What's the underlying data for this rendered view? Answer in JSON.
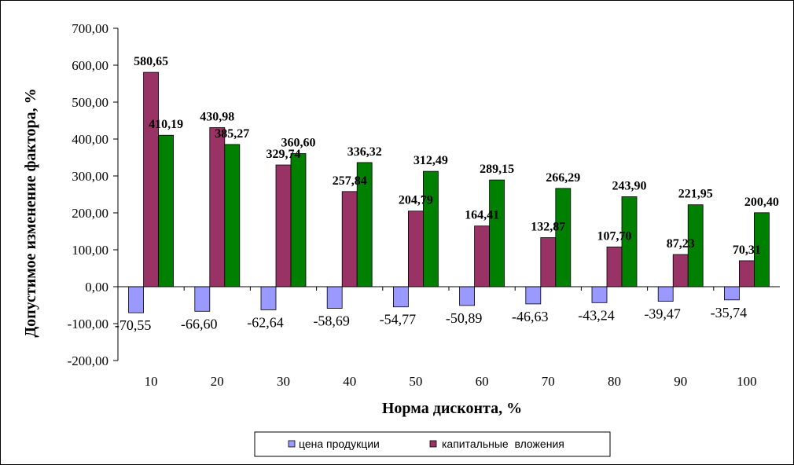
{
  "chart_data": {
    "type": "bar",
    "xlabel": "Норма дисконта, %",
    "ylabel": "Допустимое изменение фактора, %",
    "ylim": [
      -200,
      700
    ],
    "yticks": [
      -200,
      -100,
      0,
      100,
      200,
      300,
      400,
      500,
      600,
      700
    ],
    "ytick_labels": [
      "-200,00",
      "-100,00",
      "0,00",
      "100,00",
      "200,00",
      "300,00",
      "400,00",
      "500,00",
      "600,00",
      "700,00"
    ],
    "categories": [
      "10",
      "20",
      "30",
      "40",
      "50",
      "60",
      "70",
      "80",
      "90",
      "100"
    ],
    "grid": false,
    "legend_position": "bottom",
    "series": [
      {
        "name": "цена продукции",
        "color": "#9999ff",
        "values": [
          -70.55,
          -66.6,
          -62.64,
          -58.69,
          -54.77,
          -50.89,
          -46.63,
          -43.24,
          -39.47,
          -35.74
        ],
        "labels": [
          "-70,55",
          "-66,60",
          "-62,64",
          "-58,69",
          "-54,77",
          "-50,89",
          "-46,63",
          "-43,24",
          "-39,47",
          "-35,74"
        ]
      },
      {
        "name": "капитальные  вложения",
        "color": "#993366",
        "values": [
          580.65,
          430.98,
          329.74,
          257.84,
          204.79,
          164.41,
          132.87,
          107.7,
          87.23,
          70.31
        ],
        "labels": [
          "580,65",
          "430,98",
          "329,74",
          "257,84",
          "204,79",
          "164,41",
          "132,87",
          "107,70",
          "87,23",
          "70,31"
        ]
      },
      {
        "name": "",
        "color": "#008000",
        "values": [
          410.19,
          385.27,
          360.6,
          336.32,
          312.49,
          289.15,
          266.29,
          243.9,
          221.95,
          200.4
        ],
        "labels": [
          "410,19",
          "385,27",
          "360,60",
          "336,32",
          "312,49",
          "289,15",
          "266,29",
          "243,90",
          "221,95",
          "200,40"
        ]
      }
    ]
  }
}
